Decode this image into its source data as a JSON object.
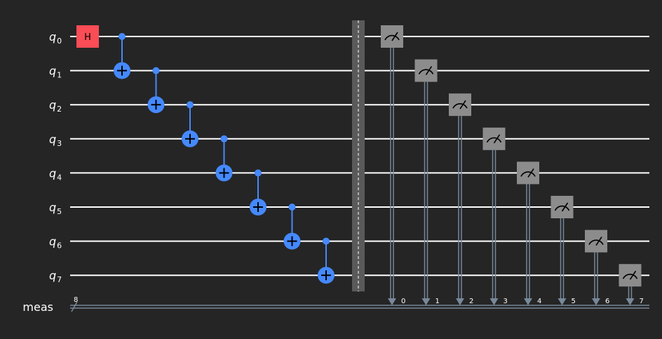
{
  "circuit": {
    "qubit_prefix": "q",
    "qubits": [
      "0",
      "1",
      "2",
      "3",
      "4",
      "5",
      "6",
      "7"
    ],
    "classical_register": {
      "name": "meas",
      "width_label": "8"
    },
    "gates": [
      {
        "type": "H",
        "label": "H",
        "qubit": 0
      },
      {
        "type": "CX",
        "control": 0,
        "target": 1
      },
      {
        "type": "CX",
        "control": 1,
        "target": 2
      },
      {
        "type": "CX",
        "control": 2,
        "target": 3
      },
      {
        "type": "CX",
        "control": 3,
        "target": 4
      },
      {
        "type": "CX",
        "control": 4,
        "target": 5
      },
      {
        "type": "CX",
        "control": 5,
        "target": 6
      },
      {
        "type": "CX",
        "control": 6,
        "target": 7
      }
    ],
    "barrier": true,
    "measurements": [
      {
        "qubit": 0,
        "bit_label": "0"
      },
      {
        "qubit": 1,
        "bit_label": "1"
      },
      {
        "qubit": 2,
        "bit_label": "2"
      },
      {
        "qubit": 3,
        "bit_label": "3"
      },
      {
        "qubit": 4,
        "bit_label": "4"
      },
      {
        "qubit": 5,
        "bit_label": "5"
      },
      {
        "qubit": 6,
        "bit_label": "6"
      },
      {
        "qubit": 7,
        "bit_label": "7"
      }
    ],
    "colors": {
      "background": "#252525",
      "wire": "#ffffff",
      "classical_wire": "#778899",
      "h_gate": "#fa4d56",
      "cx": "#4589ff",
      "measure": "#8c8c8c",
      "barrier": "#5a5a5a"
    },
    "icons": {
      "measure": "meter-icon",
      "target": "cnot-target-icon",
      "control": "control-dot-icon"
    }
  }
}
